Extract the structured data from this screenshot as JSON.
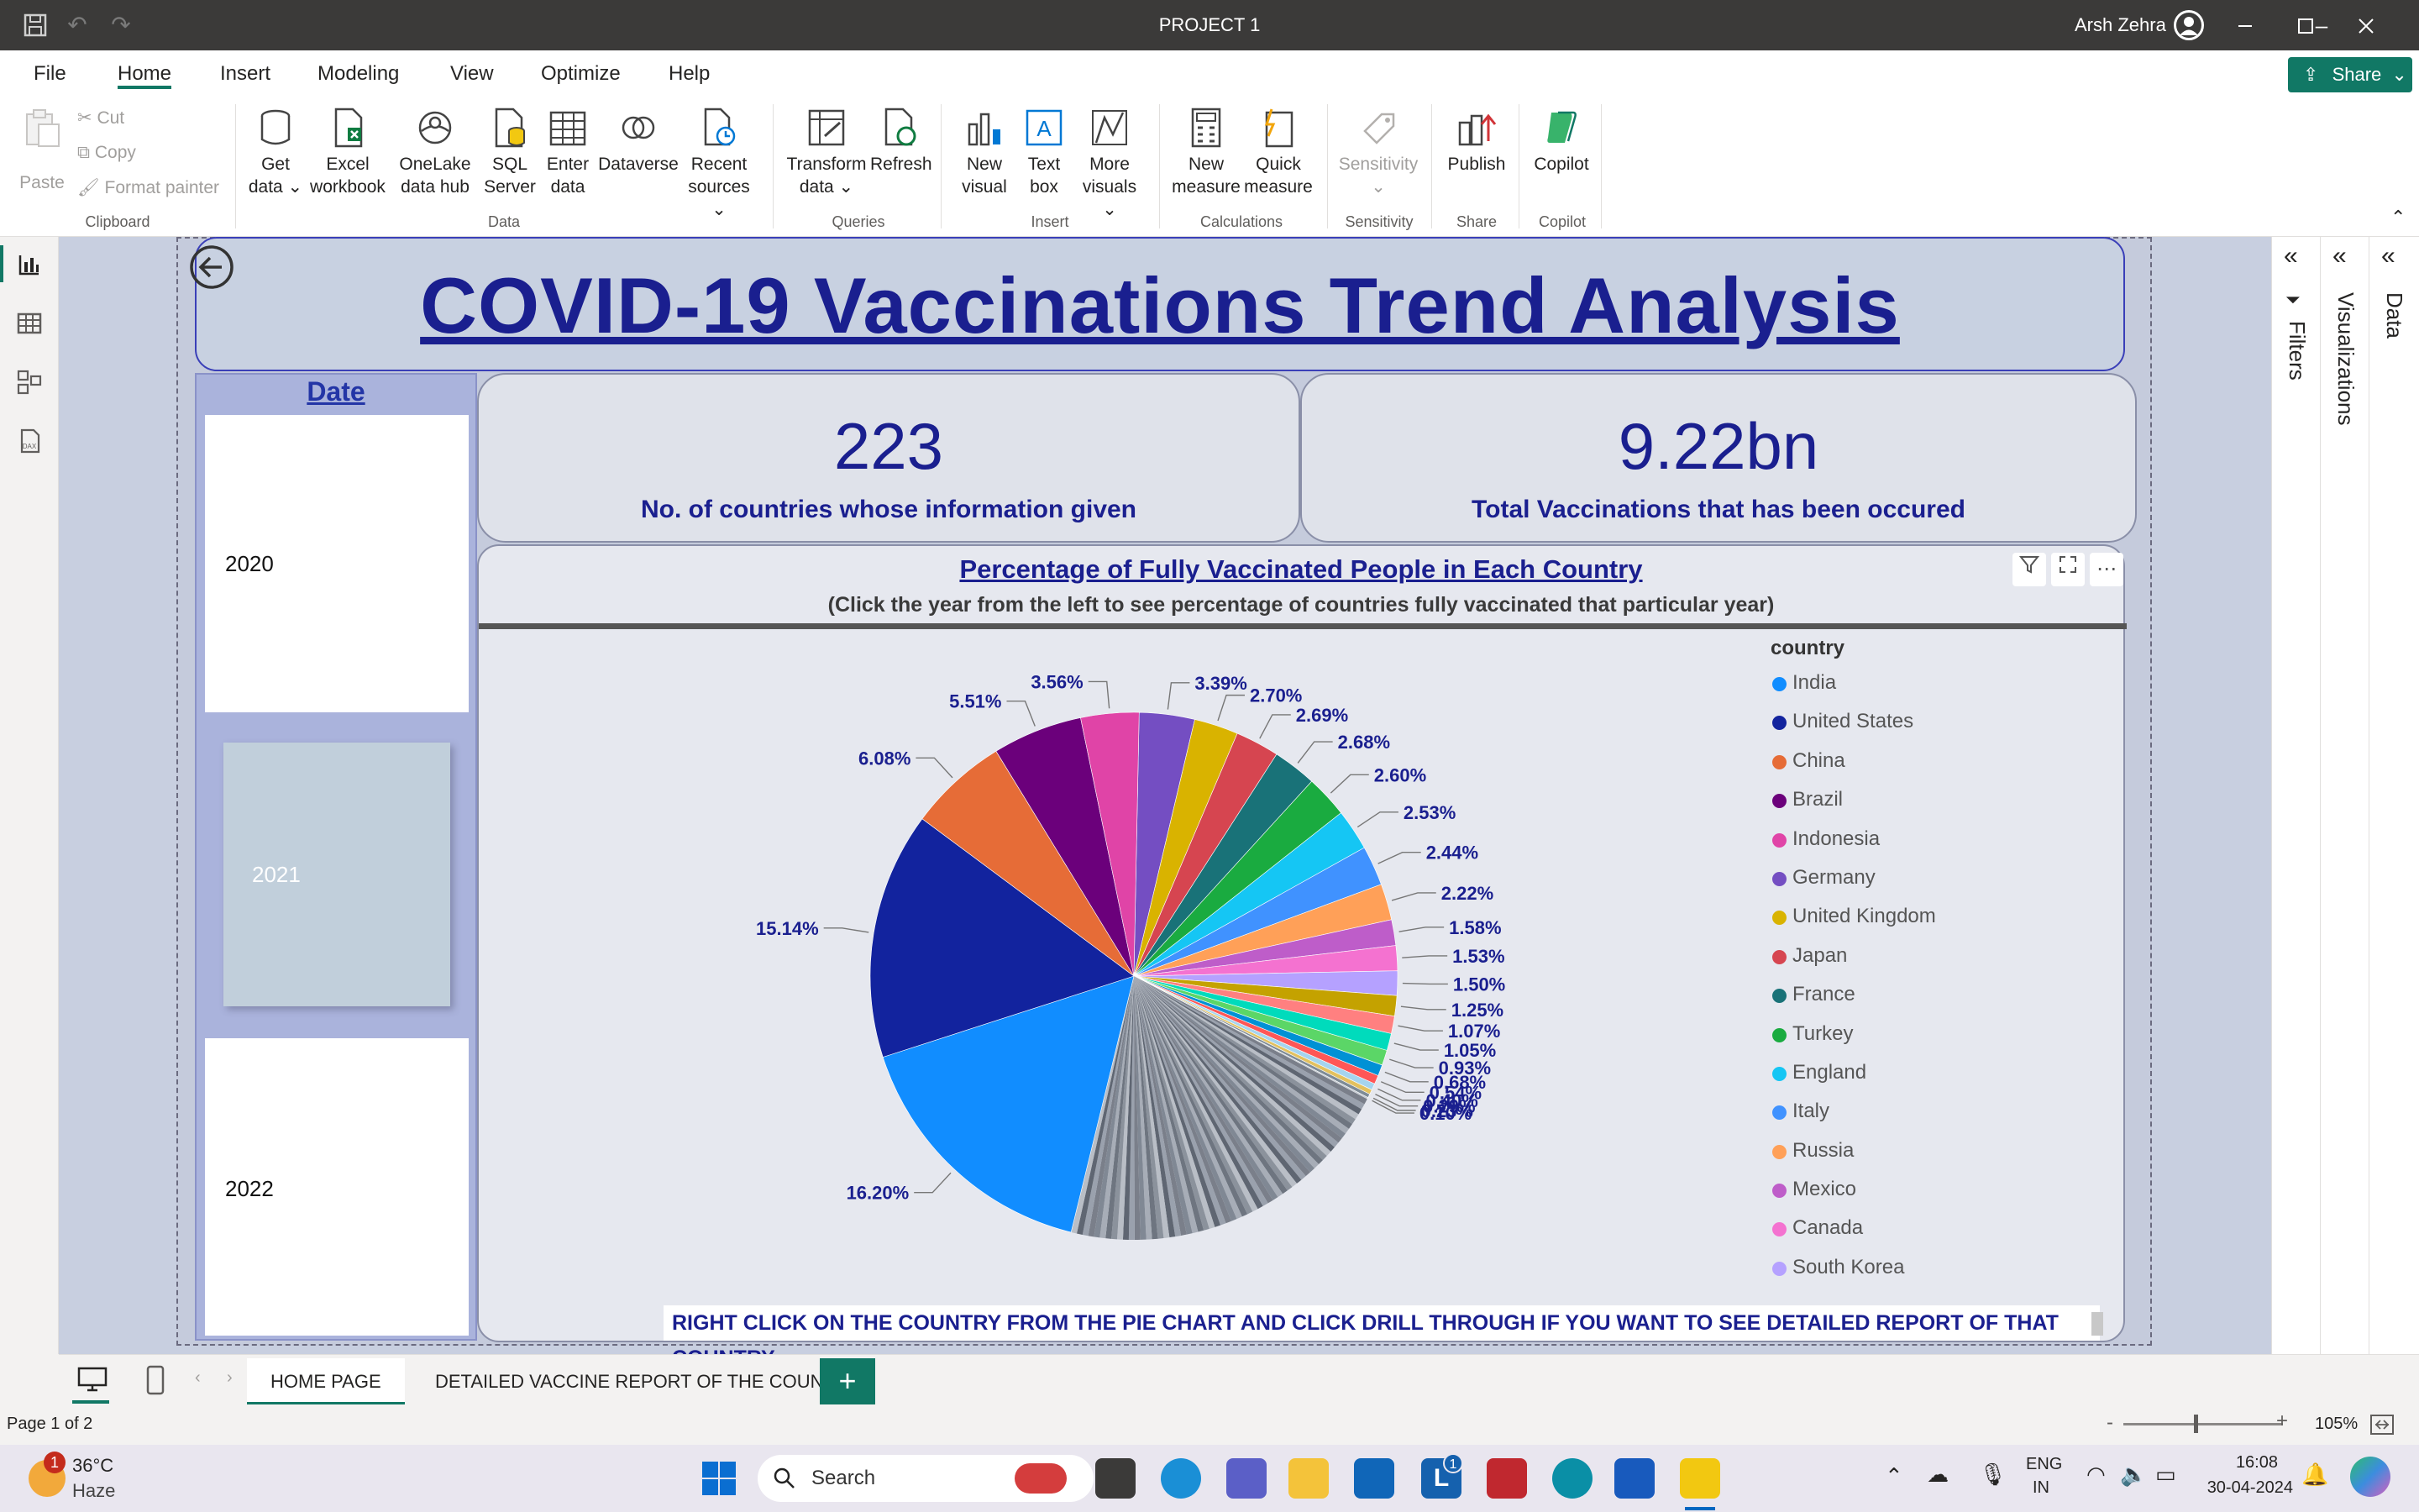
{
  "window": {
    "title": "PROJECT 1",
    "user": "Arsh Zehra"
  },
  "menu": {
    "tabs": [
      "File",
      "Home",
      "Insert",
      "Modeling",
      "View",
      "Optimize",
      "Help"
    ],
    "active": "Home",
    "share": "Share"
  },
  "ribbon": {
    "clipboard": {
      "paste": "Paste",
      "cut": "Cut",
      "copy": "Copy",
      "format_painter": "Format painter",
      "group": "Clipboard"
    },
    "data": {
      "get_data": [
        "Get",
        "data"
      ],
      "excel": [
        "Excel",
        "workbook"
      ],
      "onelake": [
        "OneLake",
        "data hub"
      ],
      "sql": [
        "SQL",
        "Server"
      ],
      "enter": [
        "Enter",
        "data"
      ],
      "dataverse": "Dataverse",
      "recent": [
        "Recent",
        "sources"
      ],
      "group": "Data"
    },
    "queries": {
      "transform": [
        "Transform",
        "data"
      ],
      "refresh": "Refresh",
      "group": "Queries"
    },
    "insert": {
      "new_visual": [
        "New",
        "visual"
      ],
      "text_box": [
        "Text",
        "box"
      ],
      "more_visuals": [
        "More",
        "visuals"
      ],
      "group": "Insert"
    },
    "calculations": {
      "new_measure": [
        "New",
        "measure"
      ],
      "quick_measure": [
        "Quick",
        "measure"
      ],
      "group": "Calculations"
    },
    "sensitivity": {
      "label": "Sensitivity",
      "group": "Sensitivity"
    },
    "share": {
      "publish": "Publish",
      "group": "Share"
    },
    "copilot": {
      "label": "Copilot",
      "group": "Copilot"
    }
  },
  "panes": {
    "filters": "Filters",
    "visualizations": "Visualizations",
    "data": "Data"
  },
  "report": {
    "title": "COVID-19 Vaccinations Trend Analysis",
    "slicer": {
      "header": "Date",
      "years": [
        "2020",
        "2021",
        "2022"
      ],
      "selected": "2021"
    },
    "kpi1": {
      "value": "223",
      "label": "No. of countries whose  information given"
    },
    "kpi2": {
      "value": "9.22bn",
      "label": "Total Vaccinations that has been occured"
    },
    "chart_title": "Percentage of Fully Vaccinated People in Each Country",
    "chart_subtitle": "(Click the year from the left to see percentage of countries fully vaccinated that particular year)",
    "legend_title": "country",
    "drill_note": "RIGHT CLICK ON THE COUNTRY FROM THE PIE CHART AND CLICK DRILL THROUGH IF YOU WANT TO SEE DETAILED REPORT OF THAT COUNTRY"
  },
  "chart_data": {
    "type": "pie",
    "title": "Percentage of Fully Vaccinated People in Each Country",
    "legend_title": "country",
    "legend_position": "right",
    "slices": [
      {
        "label": "India",
        "value": 16.2,
        "color": "#118dff"
      },
      {
        "label": "United States",
        "value": 15.14,
        "color": "#12239e"
      },
      {
        "label": "China",
        "value": 6.08,
        "color": "#e66c37"
      },
      {
        "label": "Brazil",
        "value": 5.51,
        "color": "#6b007b"
      },
      {
        "label": "Indonesia",
        "value": 3.56,
        "color": "#e044a7"
      },
      {
        "label": "Germany",
        "value": 3.39,
        "color": "#744ec2"
      },
      {
        "label": "United Kingdom",
        "value": 2.7,
        "color": "#d9b300"
      },
      {
        "label": "Japan",
        "value": 2.69,
        "color": "#d64550"
      },
      {
        "label": "France",
        "value": 2.68,
        "color": "#197278"
      },
      {
        "label": "Turkey",
        "value": 2.6,
        "color": "#1aab40"
      },
      {
        "label": "England",
        "value": 2.53,
        "color": "#15c6f4"
      },
      {
        "label": "Italy",
        "value": 2.44,
        "color": "#4092ff"
      },
      {
        "label": "Russia",
        "value": 2.22,
        "color": "#ffa058"
      },
      {
        "label": "Mexico",
        "value": 1.58,
        "color": "#be5dc9"
      },
      {
        "label": "Canada",
        "value": 1.53,
        "color": "#f472d0"
      },
      {
        "label": "South Korea",
        "value": 1.5,
        "color": "#b5a1ff"
      },
      {
        "label": "",
        "value": 1.25,
        "color": "#c4a200"
      },
      {
        "label": "",
        "value": 1.07,
        "color": "#ff8080"
      },
      {
        "label": "",
        "value": 1.05,
        "color": "#00dbbc"
      },
      {
        "label": "",
        "value": 0.93,
        "color": "#5bd667"
      },
      {
        "label": "",
        "value": 0.68,
        "color": "#0091d5"
      },
      {
        "label": "",
        "value": 0.54,
        "color": "#ff5656"
      },
      {
        "label": "",
        "value": 0.4,
        "color": "#a5d4ef"
      },
      {
        "label": "",
        "value": 0.29,
        "color": "#e3c15f"
      },
      {
        "label": "",
        "value": 0.23,
        "color": "#7e8b96"
      },
      {
        "label": "",
        "value": 0.1,
        "color": "#c2c8d0"
      }
    ],
    "data_labels": [
      "16.20%",
      "15.14%",
      "6.08%",
      "5.51%",
      "3.56%",
      "3.39%",
      "2.70%",
      "2.69%",
      "2.68%",
      "2.60%",
      "2.53%",
      "2.44%",
      "2.22%",
      "1.58%",
      "1.53%",
      "1.50%",
      "1.25%",
      "1.07%",
      "1.05%",
      "0.93%",
      "0.68%",
      "0.54%",
      "0.40%",
      "0.29%",
      "0.23%",
      "0.10%"
    ],
    "remaining_small_slices_share": 21.11
  },
  "page_tabs": {
    "tabs": [
      "HOME PAGE",
      "DETAILED VACCINE REPORT OF THE COUN..."
    ],
    "active": "HOME PAGE"
  },
  "status": {
    "page": "Page 1 of 2",
    "zoom": "105%"
  },
  "taskbar": {
    "weather_temp": "36°C",
    "weather_desc": "Haze",
    "weather_badge": "1",
    "search": "Search",
    "lang1": "ENG",
    "lang2": "IN",
    "time": "16:08",
    "date": "30-04-2024",
    "badge_l": "1"
  }
}
